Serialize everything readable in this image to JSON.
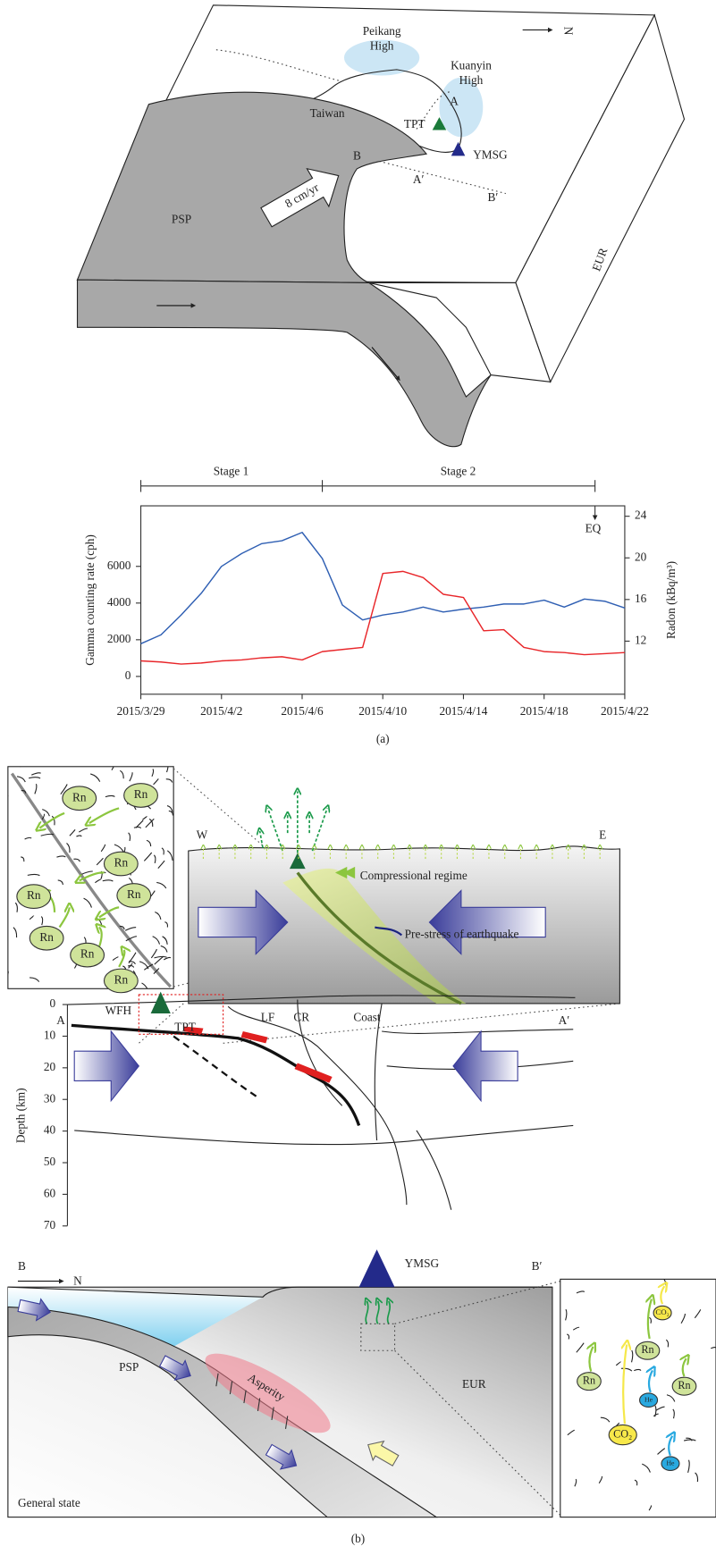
{
  "block_diagram": {
    "north": "N",
    "peikang_high": [
      "Peikang",
      "High"
    ],
    "kuanyin_high": [
      "Kuanyin",
      "High"
    ],
    "taiwan": "Taiwan",
    "tpt": "TPT",
    "a": "A",
    "ymsg": "YMSG",
    "b": "B",
    "a_prime": "A′",
    "b_prime": "B′",
    "velocity": "8 cm/yr",
    "psp": "PSP",
    "eur": "EUR"
  },
  "chart_data": {
    "type": "line",
    "annotations": [
      "Stage 1",
      "Stage 2",
      "EQ"
    ],
    "ylabel": "Gamma counting rate (cph)",
    "y2label": "Radon (kBq/m³)",
    "x": [
      "2015/3/29",
      "2015/3/30",
      "2015/3/31",
      "2015/4/1",
      "2015/4/2",
      "2015/4/3",
      "2015/4/4",
      "2015/4/5",
      "2015/4/6",
      "2015/4/7",
      "2015/4/8",
      "2015/4/9",
      "2015/4/10",
      "2015/4/11",
      "2015/4/12",
      "2015/4/13",
      "2015/4/14",
      "2015/4/15",
      "2015/4/16",
      "2015/4/17",
      "2015/4/18",
      "2015/4/19",
      "2015/4/20",
      "2015/4/21",
      "2015/4/22"
    ],
    "xlim": [
      "2015/3/29",
      "2015/4/22"
    ],
    "xticks": [
      "2015/3/29",
      "2015/4/2",
      "2015/4/6",
      "2015/4/10",
      "2015/4/14",
      "2015/4/18",
      "2015/4/22"
    ],
    "ylim": [
      -970,
      9300
    ],
    "yticks": [
      0,
      2000,
      4000,
      6000
    ],
    "y2lim": [
      6.9,
      25
    ],
    "y2ticks": [
      12,
      16,
      20,
      24
    ],
    "series": [
      {
        "color": "#2f5fb3",
        "values": [
          1780,
          2270,
          3350,
          4540,
          6000,
          6700,
          7240,
          7400,
          7850,
          6430,
          3890,
          3080,
          3350,
          3510,
          3780,
          3510,
          3670,
          3780,
          3950,
          3950,
          4160,
          3780,
          4220,
          4100,
          3730
        ]
      },
      {
        "color": "#e8262a",
        "axis": "y2",
        "values": [
          10.1,
          10.0,
          9.8,
          9.9,
          10.1,
          10.2,
          10.4,
          10.5,
          10.2,
          11.0,
          11.2,
          11.4,
          18.5,
          18.7,
          18.1,
          16.5,
          16.2,
          13.0,
          13.1,
          11.4,
          11.0,
          10.9,
          10.7,
          10.8,
          10.9
        ]
      }
    ]
  },
  "panel_labels": [
    "(a)",
    "(b)"
  ],
  "inset_left": {
    "labels": [
      "Rn",
      "Rn",
      "Rn",
      "Rn",
      "Rn",
      "Rn",
      "Rn",
      "Rn"
    ]
  },
  "upper_section": {
    "west": "W",
    "east": "E",
    "compressional": "Compressional regime",
    "prestress": "Pre-stress of earthquake"
  },
  "cross_section": {
    "a": "A",
    "a_prime": "A′",
    "wfh": "WFH",
    "tpt": "TPT",
    "lf": "LF",
    "cr": "CR",
    "coast": "Coast",
    "ylabel": "Depth (km)",
    "depth_ticks": [
      0,
      10,
      20,
      30,
      40,
      50,
      60,
      70
    ]
  },
  "lower_section": {
    "b": "B",
    "north": "N",
    "b_prime": "B′",
    "ymsg": "YMSG",
    "psp": "PSP",
    "asperity": "Asperity",
    "eur": "EUR",
    "state": "General state"
  },
  "inset_right": {
    "labels": [
      "CO₂",
      "Rn",
      "Rn",
      "He",
      "Rn",
      "CO₂",
      "He"
    ]
  }
}
